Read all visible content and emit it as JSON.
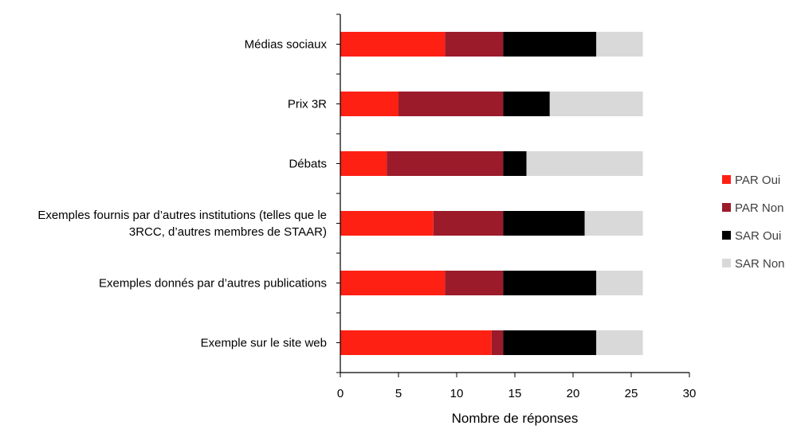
{
  "chart_data": {
    "type": "bar",
    "orientation": "horizontal",
    "stacked": true,
    "categories": [
      [
        "Médias sociaux"
      ],
      [
        "Prix 3R "
      ],
      [
        "Débats"
      ],
      [
        "Exemples fournis par d’autres institutions (telles que le",
        "3RCC, d’autres membres de STAAR)"
      ],
      [
        "Exemples donnés par d’autres publications"
      ],
      [
        "Exemple sur le site web"
      ]
    ],
    "series": [
      {
        "name": "PAR Oui",
        "color": "#ff2014",
        "values": [
          9,
          5,
          4,
          8,
          9,
          13
        ]
      },
      {
        "name": "PAR Non",
        "color": "#9b1b2b",
        "values": [
          5,
          9,
          10,
          6,
          5,
          1
        ]
      },
      {
        "name": "SAR Oui",
        "color": "#000000",
        "values": [
          8,
          4,
          2,
          7,
          8,
          8
        ]
      },
      {
        "name": "SAR Non",
        "color": "#d9d9d9",
        "values": [
          4,
          8,
          10,
          5,
          4,
          4
        ]
      }
    ],
    "xlabel": "Nombre de réponses",
    "ylabel": "",
    "title": "",
    "xlim": [
      0,
      30
    ],
    "xticks": [
      0,
      5,
      10,
      15,
      20,
      25,
      30
    ],
    "grid": false,
    "legend": "right"
  }
}
